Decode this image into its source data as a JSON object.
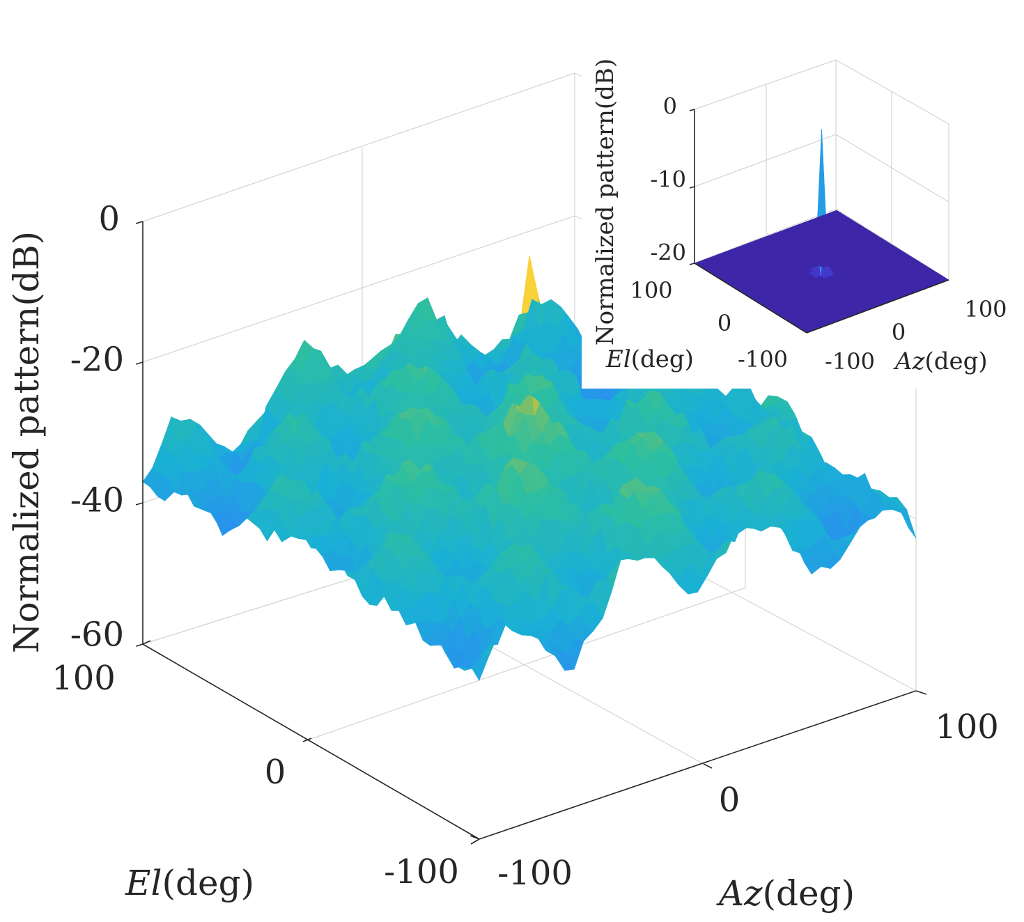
{
  "chart_data": [
    {
      "type": "surface",
      "title": "",
      "xlabel": {
        "italic": "Az",
        "rest": "(deg)"
      },
      "ylabel": {
        "italic": "El",
        "rest": "(deg)"
      },
      "zlabel": "Normalized pattern(dB)",
      "x_ticks": [
        "-100",
        "0",
        "100"
      ],
      "y_ticks": [
        "-100",
        "0",
        "100"
      ],
      "z_ticks": [
        "0",
        "-20",
        "-40",
        "-60"
      ],
      "xlim": [
        -100,
        100
      ],
      "ylim": [
        -100,
        100
      ],
      "zlim": [
        -60,
        0
      ],
      "colormap": [
        "#3e26a8",
        "#4748f0",
        "#2e87f7",
        "#1ab0d5",
        "#2ebf9f",
        "#a5be4d",
        "#f9d13b",
        "#f9fb15"
      ],
      "peak": {
        "az": 0,
        "el": 0,
        "value_db": 0
      },
      "floor_db": -55
    },
    {
      "type": "surface",
      "title": "",
      "xlabel": {
        "italic": "Az",
        "rest": "(deg)"
      },
      "ylabel": {
        "italic": "El",
        "rest": "(deg)"
      },
      "zlabel": "Normalized pattern(dB)",
      "x_ticks": [
        "-100",
        "0",
        "100"
      ],
      "y_ticks": [
        "-100",
        "0",
        "100"
      ],
      "z_ticks": [
        "0",
        "-10",
        "-20"
      ],
      "xlim": [
        -100,
        100
      ],
      "ylim": [
        -100,
        100
      ],
      "zlim": [
        -20,
        0
      ],
      "peak": {
        "az": 0,
        "el": 0,
        "value_db": 0
      },
      "floor_db": -20
    }
  ]
}
